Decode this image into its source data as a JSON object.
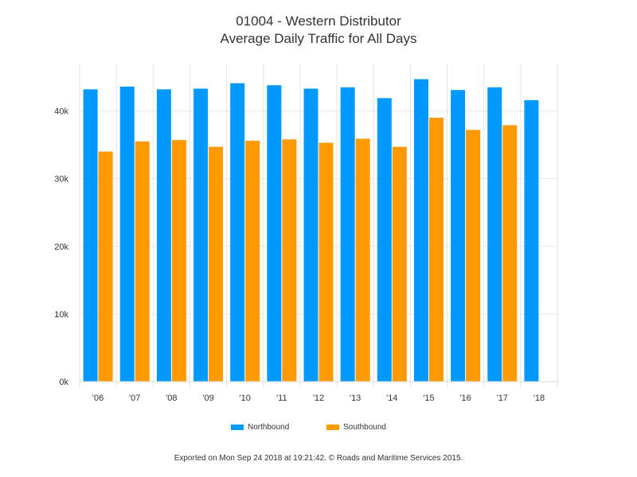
{
  "chart_data": {
    "type": "bar",
    "title": "01004 - Western Distributor",
    "subtitle": "Average Daily Traffic for All Days",
    "categories": [
      "'06",
      "'07",
      "'08",
      "'09",
      "'10",
      "'11",
      "'12",
      "'13",
      "'14",
      "'15",
      "'16",
      "'17",
      "'18"
    ],
    "series": [
      {
        "name": "Northbound",
        "color": "#0099ff",
        "values": [
          43200,
          43600,
          43200,
          43300,
          44100,
          43800,
          43300,
          43500,
          41900,
          44700,
          43100,
          43500,
          41600
        ]
      },
      {
        "name": "Southbound",
        "color": "#ff9900",
        "values": [
          34000,
          35500,
          35700,
          34700,
          35600,
          35800,
          35300,
          35900,
          34700,
          39000,
          37200,
          37900,
          null
        ]
      }
    ],
    "y_tick_labels": [
      "0k",
      "10k",
      "20k",
      "30k",
      "40k"
    ],
    "y_ticks": [
      0,
      10000,
      20000,
      30000,
      40000
    ],
    "ylim": [
      0,
      47000
    ],
    "grid": true,
    "legend_position": "bottom"
  },
  "footer": "Exported on Mon Sep 24 2018 at 19:21:42. © Roads and Maritime Services 2015."
}
